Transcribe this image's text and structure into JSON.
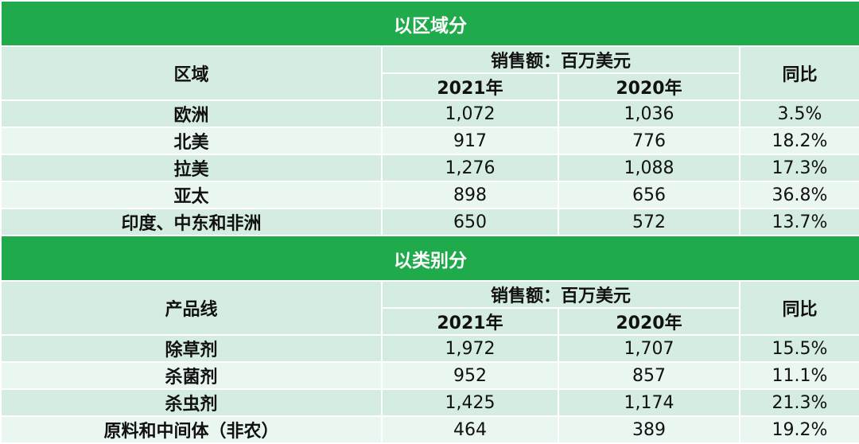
{
  "sections": [
    {
      "title": "以区域分",
      "dimension_header": "区域",
      "sales_header": "销售额：百万美元",
      "year_a": "2021年",
      "year_b": "2020年",
      "yoy_header": "同比",
      "rows": [
        {
          "name": "欧洲",
          "y2021": "1,072",
          "y2020": "1,036",
          "yoy": "3.5%"
        },
        {
          "name": "北美",
          "y2021": "917",
          "y2020": "776",
          "yoy": "18.2%"
        },
        {
          "name": "拉美",
          "y2021": "1,276",
          "y2020": "1,088",
          "yoy": "17.3%"
        },
        {
          "name": "亚太",
          "y2021": "898",
          "y2020": "656",
          "yoy": "36.8%"
        },
        {
          "name": "印度、中东和非洲",
          "y2021": "650",
          "y2020": "572",
          "yoy": "13.7%"
        }
      ]
    },
    {
      "title": "以类别分",
      "dimension_header": "产品线",
      "sales_header": "销售额：百万美元",
      "year_a": "2021年",
      "year_b": "2020年",
      "yoy_header": "同比",
      "rows": [
        {
          "name": "除草剂",
          "y2021": "1,972",
          "y2020": "1,707",
          "yoy": "15.5%"
        },
        {
          "name": "杀菌剂",
          "y2021": "952",
          "y2020": "857",
          "yoy": "11.1%"
        },
        {
          "name": "杀虫剂",
          "y2021": "1,425",
          "y2020": "1,174",
          "yoy": "21.3%"
        },
        {
          "name": "原料和中间体（非农）",
          "y2021": "464",
          "y2020": "389",
          "yoy": "19.2%"
        }
      ]
    }
  ],
  "colors": {
    "section_green": "#1faa4b",
    "row_mint": "#d5ede1",
    "row_mint_light": "#eaf6f0"
  }
}
